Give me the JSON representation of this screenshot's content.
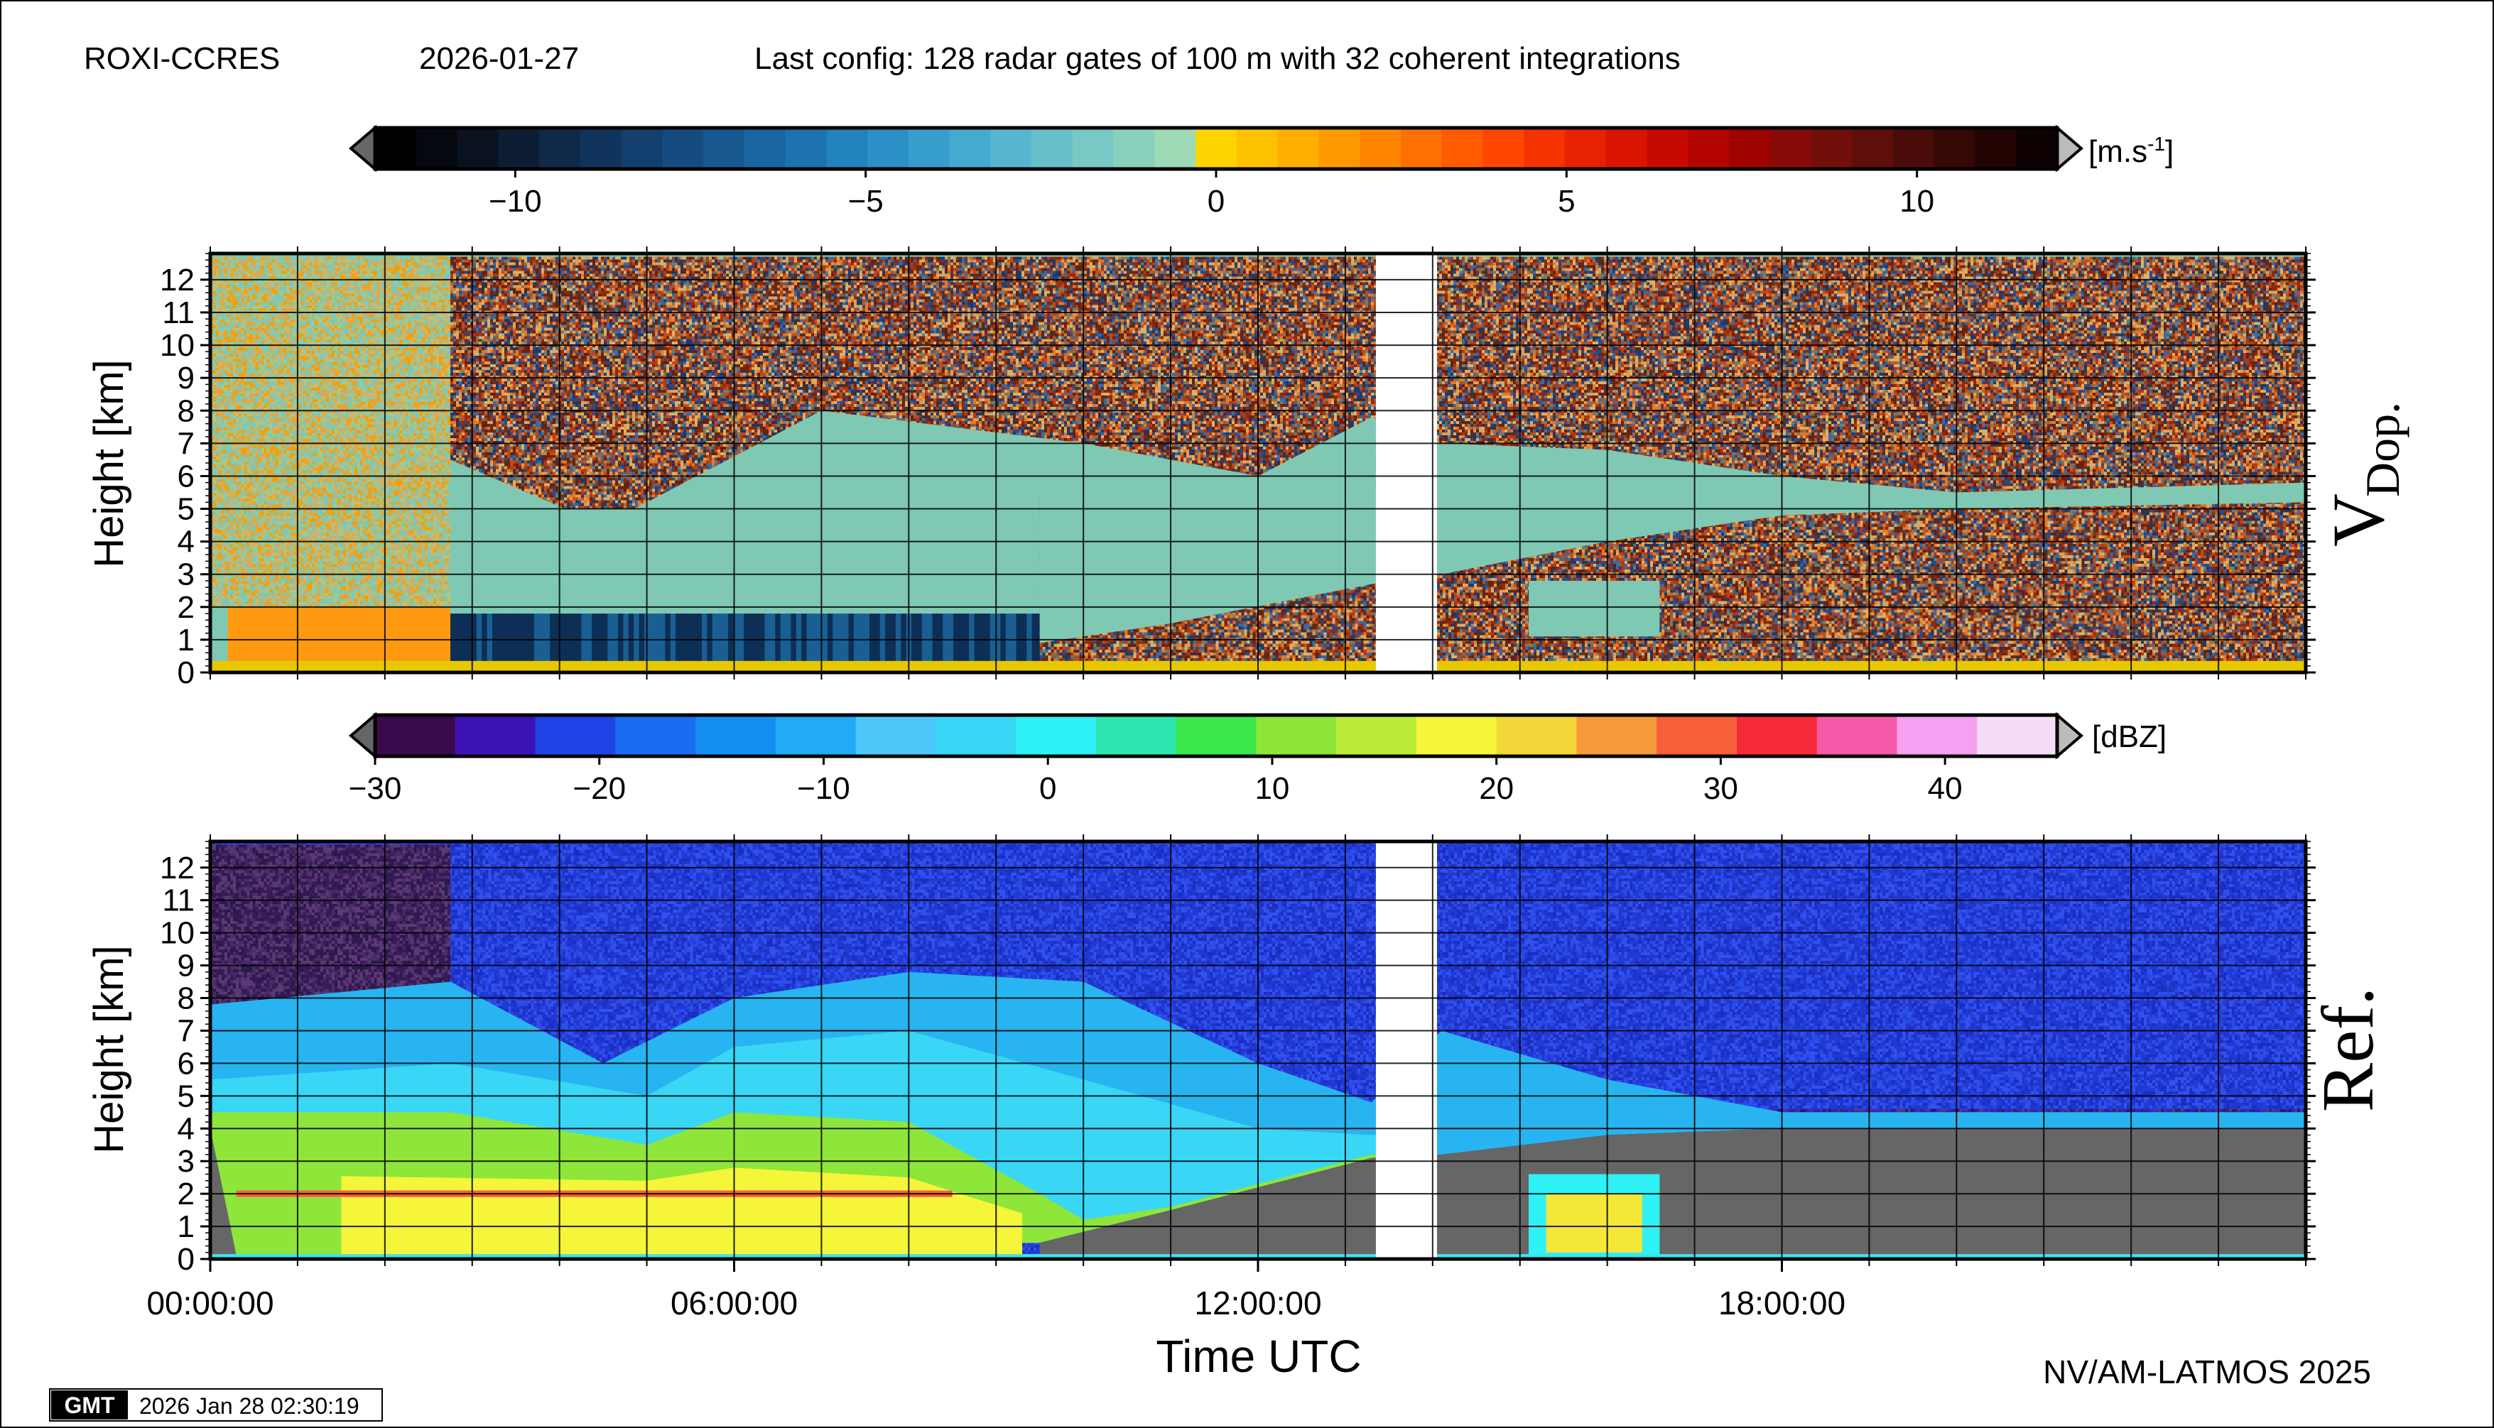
{
  "header": {
    "station": "ROXI-CCRES",
    "date": "2026-01-27",
    "config": "Last config: 128 radar gates of 100 m with 32 coherent integrations"
  },
  "colorbars": {
    "doppler": {
      "unit": "[m.s",
      "unit_sup": "-1",
      "unit_close": "]",
      "range": [
        -12,
        12
      ],
      "ticks": [
        -10,
        -5,
        0,
        5,
        10
      ],
      "tick_labels": [
        "−10",
        "−5",
        "0",
        "5",
        "10"
      ],
      "colors": [
        "#000000",
        "#05080f",
        "#0a1220",
        "#0d1d33",
        "#0f2a48",
        "#11345c",
        "#133f6e",
        "#154b80",
        "#175891",
        "#1965a1",
        "#1c73b0",
        "#2182bd",
        "#2a90c6",
        "#369ecd",
        "#45aacf",
        "#56b6cf",
        "#67c0cc",
        "#78c9c5",
        "#8ad1bd",
        "#9edab6",
        "#ffd500",
        "#ffc200",
        "#ffae00",
        "#ff9900",
        "#ff8500",
        "#ff7000",
        "#ff5c00",
        "#ff4700",
        "#f53300",
        "#e82200",
        "#d91400",
        "#c70a00",
        "#b30500",
        "#9e0300",
        "#880a06",
        "#730f0a",
        "#5e0f0a",
        "#4a0c08",
        "#350805",
        "#220503",
        "#0d0201"
      ],
      "under": "#666666",
      "over": "#bbbbbb"
    },
    "reflectivity": {
      "unit": "[dBZ]",
      "range": [
        -30,
        45
      ],
      "ticks": [
        -30,
        -20,
        -10,
        0,
        10,
        20,
        30,
        40
      ],
      "tick_labels": [
        "−30",
        "−20",
        "−10",
        "0",
        "10",
        "20",
        "30",
        "40"
      ],
      "colors": [
        "#3a0a4a",
        "#3b13b5",
        "#1f44e6",
        "#1b6cf0",
        "#148ff0",
        "#22aaf5",
        "#4ec8fa",
        "#3ad6f5",
        "#2ef2f5",
        "#2ee6b0",
        "#3ae64a",
        "#8ee63a",
        "#bcec3a",
        "#f5f53a",
        "#f5d63a",
        "#f59a3a",
        "#f5603a",
        "#f52a3a",
        "#f55aa8",
        "#f5a0f0",
        "#f7dcf7"
      ],
      "under": "#666666",
      "over": "#bbbbbb"
    }
  },
  "chart_data": [
    {
      "type": "heatmap",
      "name": "V Dop.",
      "label_main": "V",
      "label_sub": "Dop.",
      "quantity": "Doppler velocity",
      "ylabel": "Height [km]",
      "ylim": [
        0,
        12.8
      ],
      "yticks": [
        0,
        1,
        2,
        3,
        4,
        5,
        6,
        7,
        8,
        9,
        10,
        11,
        12
      ],
      "xlim_hours": [
        0,
        24
      ],
      "gap_hours": [
        13.35,
        14.05
      ],
      "regions": [
        {
          "t": [
            0,
            2.75
          ],
          "h": [
            0,
            0.35
          ],
          "value": 1.0
        },
        {
          "t": [
            0,
            2.75
          ],
          "h": [
            0.35,
            2.0
          ],
          "value": 2.0
        },
        {
          "t": [
            0,
            2.75
          ],
          "h": [
            2.0,
            12.7
          ],
          "value": 1.2,
          "speckle": true
        },
        {
          "t": [
            2.75,
            13.35
          ],
          "h": [
            0.35,
            1.8
          ],
          "value": -6.0
        },
        {
          "t": [
            2.75,
            13.35
          ],
          "h": [
            1.8,
            12.7
          ],
          "value": -1.5
        },
        {
          "t": [
            14.05,
            24
          ],
          "h": [
            0.35,
            12.7
          ],
          "value": 0,
          "noise": true
        }
      ],
      "noise_cloud_top_km": [
        [
          2.75,
          6.5
        ],
        [
          4.5,
          4.5
        ],
        [
          7.0,
          8.0
        ],
        [
          10.0,
          7.0
        ],
        [
          12.0,
          6.0
        ],
        [
          13.3,
          7.8
        ],
        [
          14.1,
          7.0
        ],
        [
          16.0,
          6.8
        ],
        [
          18.0,
          6.0
        ],
        [
          20.0,
          5.5
        ],
        [
          24.0,
          5.8
        ]
      ],
      "noise_cloud_base_km": [
        [
          9.5,
          0.9
        ],
        [
          11.0,
          1.5
        ],
        [
          13.3,
          2.7
        ],
        [
          14.1,
          3.0
        ],
        [
          16.0,
          4.0
        ],
        [
          18.0,
          4.8
        ],
        [
          20.0,
          5.0
        ],
        [
          24.0,
          5.2
        ]
      ]
    },
    {
      "type": "heatmap",
      "name": "Ref.",
      "label_main": "Ref.",
      "quantity": "Reflectivity",
      "xlabel": "Time UTC",
      "ylabel": "Height [km]",
      "ylim": [
        0,
        12.8
      ],
      "yticks": [
        0,
        1,
        2,
        3,
        4,
        5,
        6,
        7,
        8,
        9,
        10,
        11,
        12
      ],
      "xlim_hours": [
        0,
        24
      ],
      "xticks": [
        "00:00:00",
        "06:00:00",
        "12:00:00",
        "18:00:00"
      ],
      "xtick_hours": [
        0,
        6,
        12,
        18
      ],
      "gap_hours": [
        13.35,
        14.05
      ],
      "cloud_top_km": [
        [
          0,
          7.8
        ],
        [
          2.75,
          8.5
        ],
        [
          4.5,
          6.0
        ],
        [
          6.0,
          8.0
        ],
        [
          8.0,
          8.8
        ],
        [
          10.0,
          8.5
        ],
        [
          12.0,
          6.0
        ],
        [
          13.3,
          4.8
        ],
        [
          14.1,
          7.0
        ],
        [
          16.0,
          5.5
        ],
        [
          18.0,
          4.5
        ],
        [
          20.0,
          4.5
        ],
        [
          24.0,
          4.5
        ]
      ],
      "cloud_base_km": [
        [
          0,
          0
        ],
        [
          9.5,
          0.5
        ],
        [
          11.0,
          1.5
        ],
        [
          13.3,
          3.1
        ],
        [
          14.1,
          3.2
        ],
        [
          16.0,
          3.8
        ],
        [
          18.0,
          4.0
        ],
        [
          24.0,
          4.0
        ]
      ],
      "bright_band_km": 2.0
    }
  ],
  "footer": {
    "logo": "GMT",
    "timestamp": "2026 Jan 28 02:30:19",
    "credit": "NV/AM-LATMOS 2025"
  }
}
